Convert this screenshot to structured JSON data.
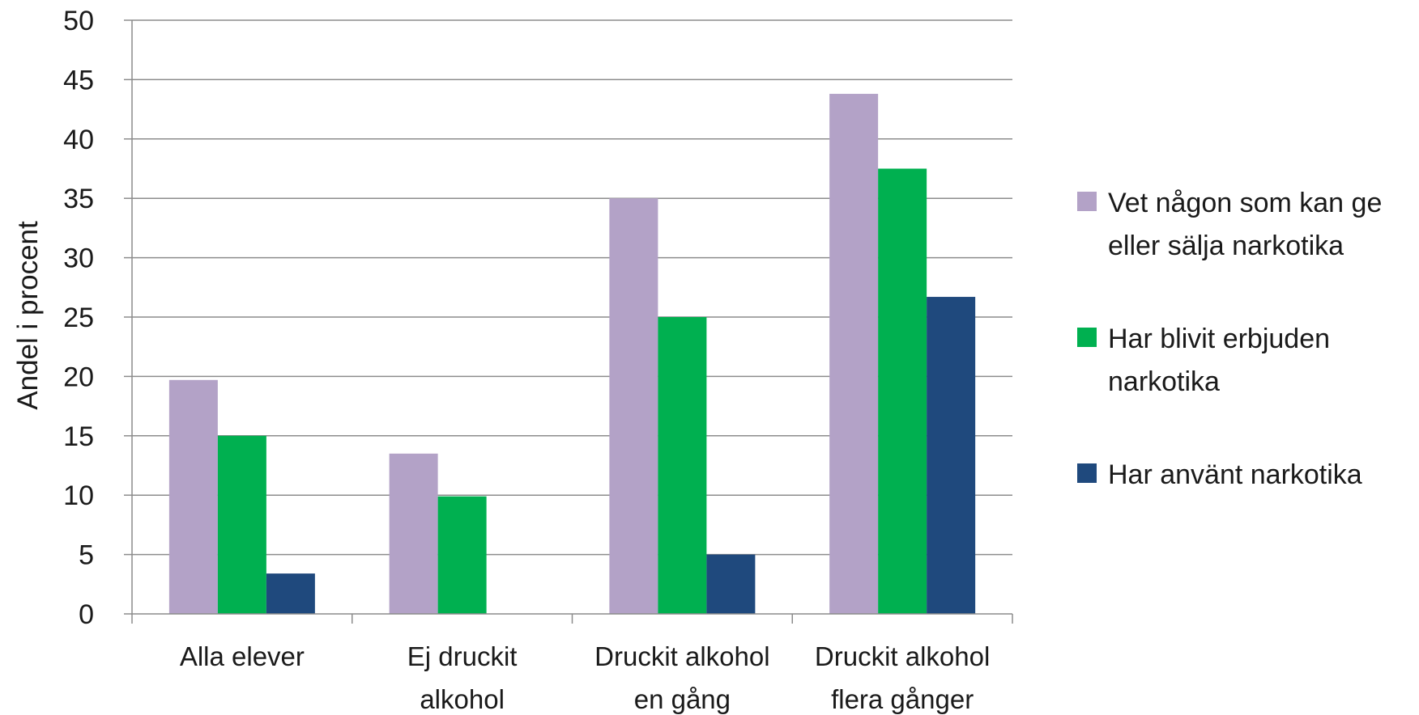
{
  "chart_data": {
    "type": "bar",
    "ylabel": "Andel i procent",
    "ylim": [
      0,
      50
    ],
    "yticks": [
      "0",
      "5",
      "10",
      "15",
      "20",
      "25",
      "30",
      "35",
      "40",
      "45",
      "50"
    ],
    "grid": true,
    "legend_position": "right",
    "categories": [
      [
        "Alla elever"
      ],
      [
        "Ej druckit",
        "alkohol"
      ],
      [
        "Druckit alkohol",
        "en gång"
      ],
      [
        "Druckit alkohol",
        "flera gånger"
      ]
    ],
    "series": [
      {
        "name": "Vet någon som kan ge eller sälja narkotika",
        "legend_lines": [
          "Vet någon som kan ge",
          "eller sälja narkotika"
        ],
        "color": "#b3a2c7",
        "values": [
          19.7,
          13.5,
          35.0,
          43.8
        ]
      },
      {
        "name": "Har blivit erbjuden narkotika",
        "legend_lines": [
          "Har blivit erbjuden",
          "narkotika"
        ],
        "color": "#00b050",
        "values": [
          15.0,
          9.9,
          25.0,
          37.5
        ]
      },
      {
        "name": "Har använt narkotika",
        "legend_lines": [
          "Har använt narkotika"
        ],
        "color": "#1f497d",
        "values": [
          3.4,
          0,
          5.0,
          26.7
        ]
      }
    ]
  }
}
